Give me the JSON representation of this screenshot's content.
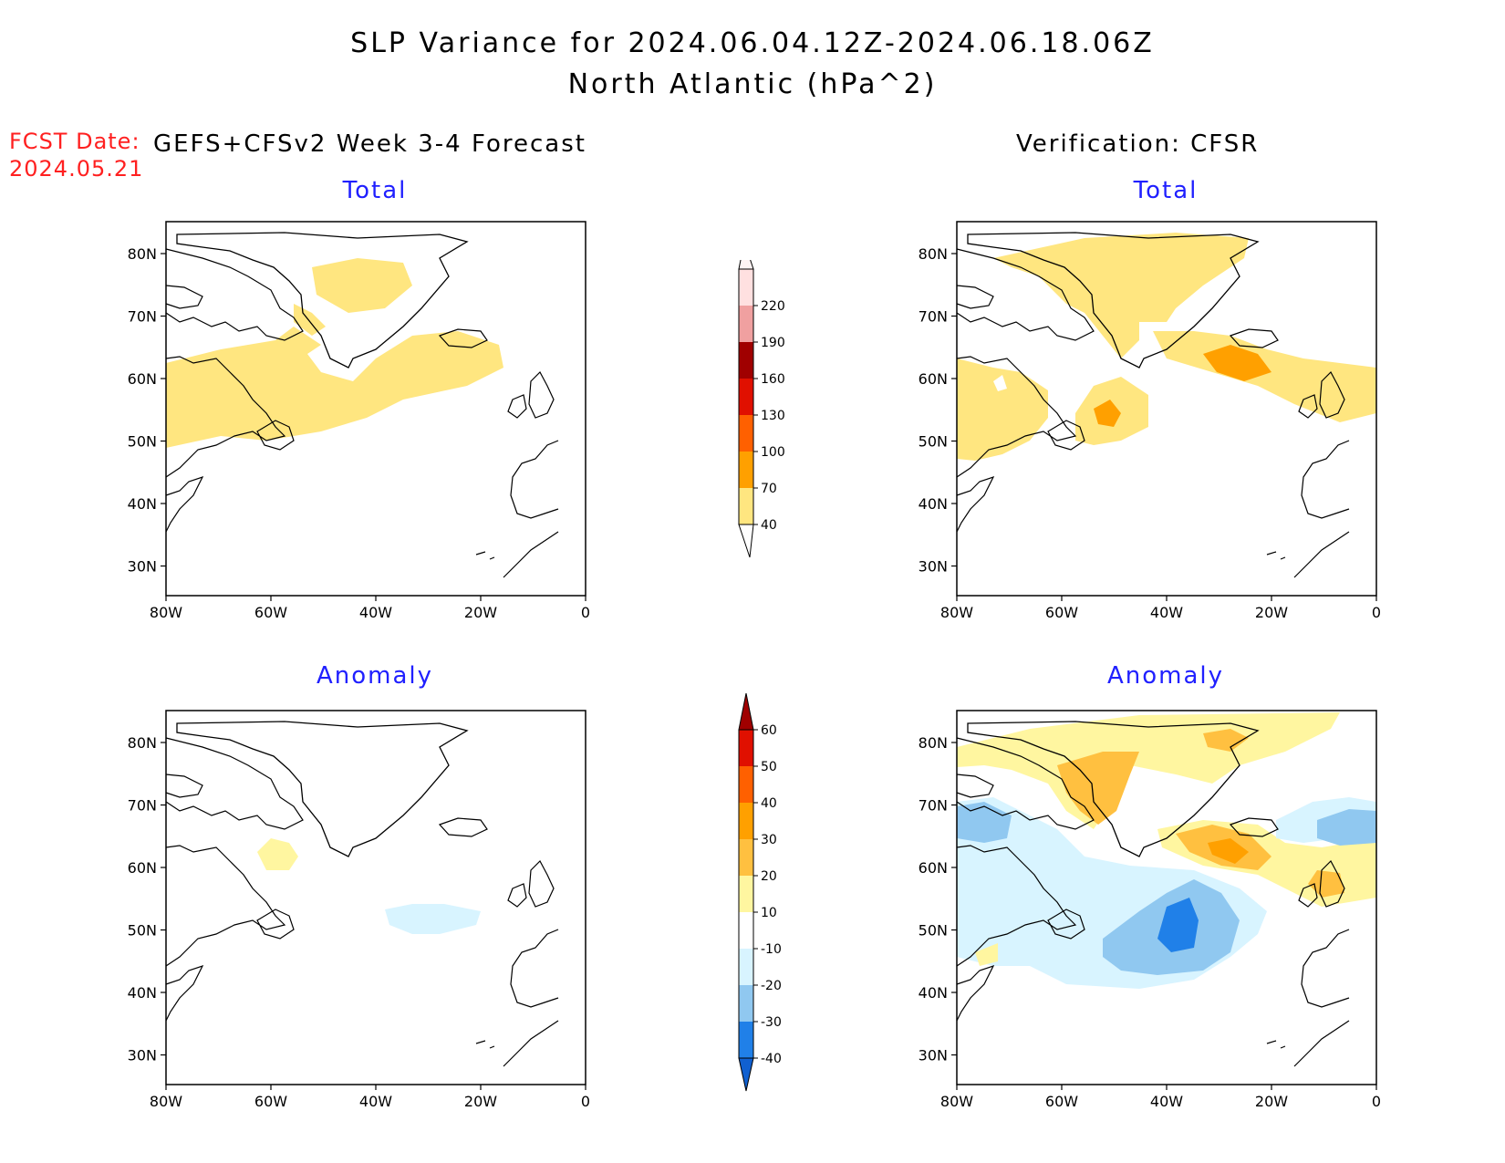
{
  "header": {
    "title": "SLP Variance for 2024.06.04.12Z-2024.06.18.06Z",
    "subtitle": "North Atlantic (hPa^2)",
    "fcst_label": "FCST Date:",
    "fcst_date": "2024.05.21",
    "left_heading": "GEFS+CFSv2 Week 3-4 Forecast",
    "right_heading": "Verification: CFSR"
  },
  "panels": {
    "fcst_total": "Total",
    "obs_total": "Total",
    "fcst_anom": "Anomaly",
    "obs_anom": "Anomaly"
  },
  "axes": {
    "lat_ticks": [
      "80N",
      "70N",
      "60N",
      "50N",
      "40N",
      "30N"
    ],
    "lon_ticks": [
      "80W",
      "60W",
      "40W",
      "20W",
      "0"
    ]
  },
  "colorbars": {
    "total": {
      "labels": [
        "40",
        "70",
        "100",
        "130",
        "160",
        "190",
        "220"
      ],
      "colors": [
        "#ffe680",
        "#ffa000",
        "#ff6000",
        "#e01000",
        "#a00000",
        "#f0a0a0",
        "#ffe0e0"
      ]
    },
    "anomaly": {
      "labels": [
        "-40",
        "-30",
        "-20",
        "-10",
        "10",
        "20",
        "30",
        "40",
        "50",
        "60"
      ],
      "colors": [
        "#1060d0",
        "#2080e8",
        "#90c8f0",
        "#d8f4ff",
        "#ffffff",
        "#fff6a0",
        "#ffc040",
        "#ffa000",
        "#ff6000",
        "#e01000",
        "#a00000"
      ]
    }
  },
  "palette": {
    "total_40": "#ffe680",
    "total_70": "#ffa000",
    "anom_pos10": "#fff6a0",
    "anom_pos20": "#ffc040",
    "anom_pos30": "#ffa000",
    "anom_neg10": "#d8f4ff",
    "anom_neg20": "#90c8f0",
    "anom_neg30": "#2080e8",
    "anom_neg40": "#1060d0",
    "fcst_date_color": "#ff2020",
    "panel_title_color": "#2020ff"
  }
}
